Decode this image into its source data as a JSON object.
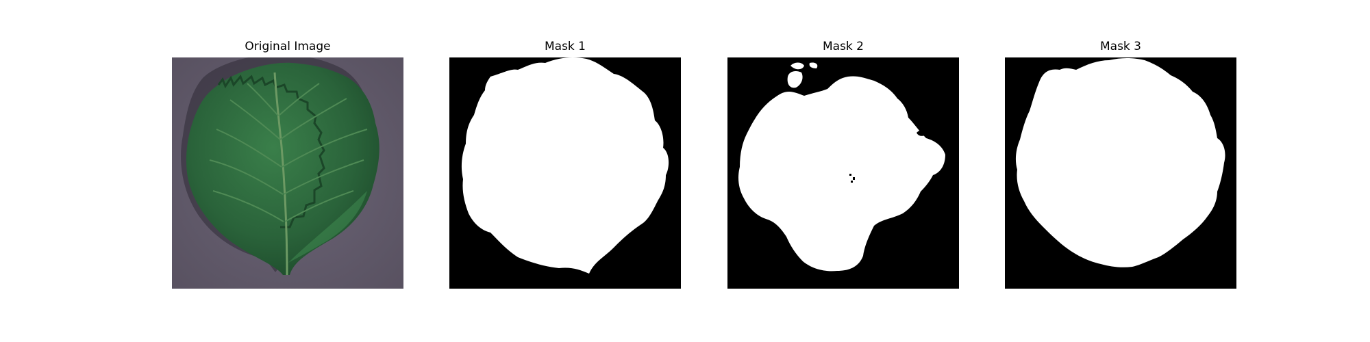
{
  "figure": {
    "panels": [
      {
        "title": "Original Image",
        "kind": "photo",
        "subject": "green serrated leaf on purple-gray background"
      },
      {
        "title": "Mask 1",
        "kind": "binary-mask"
      },
      {
        "title": "Mask 2",
        "kind": "binary-mask"
      },
      {
        "title": "Mask 3",
        "kind": "binary-mask"
      }
    ],
    "colors": {
      "background": "#ffffff",
      "photo_background": "#5e5667",
      "leaf_dark": "#1d4a2a",
      "leaf_mid": "#2f6e3f",
      "mask_background": "#000000",
      "mask_foreground": "#ffffff"
    }
  }
}
